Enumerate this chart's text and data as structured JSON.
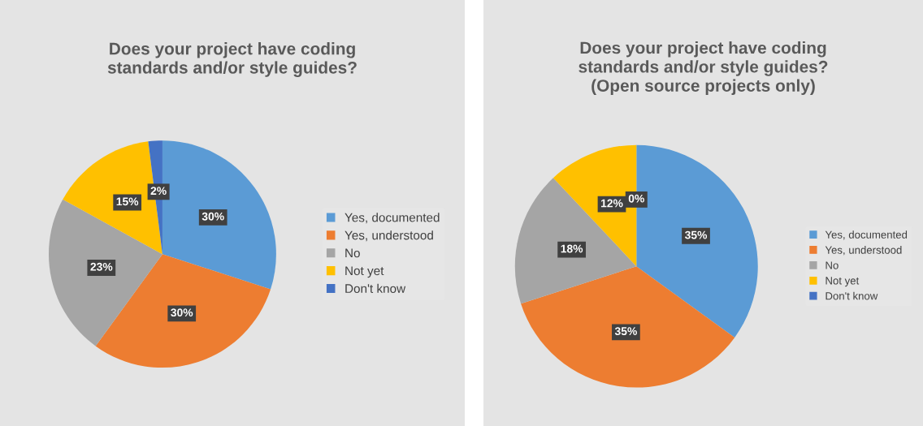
{
  "chart_data": [
    {
      "type": "pie",
      "title": "Does your project have coding\nstandards and/or style guides?",
      "categories": [
        "Yes, documented",
        "Yes, understood",
        "No",
        "Not yet",
        "Don't know"
      ],
      "values": [
        30,
        30,
        23,
        15,
        2
      ],
      "colors": [
        "#5b9bd5",
        "#ed7d31",
        "#a5a5a5",
        "#ffc000",
        "#4472c4"
      ],
      "value_labels": [
        "30%",
        "30%",
        "23%",
        "15%",
        "2%"
      ],
      "legend": "right"
    },
    {
      "type": "pie",
      "title": "Does your project have coding\nstandards and/or style guides?\n(Open source projects only)",
      "categories": [
        "Yes, documented",
        "Yes, understood",
        "No",
        "Not yet",
        "Don't know"
      ],
      "values": [
        35,
        35,
        18,
        12,
        0
      ],
      "colors": [
        "#5b9bd5",
        "#ed7d31",
        "#a5a5a5",
        "#ffc000",
        "#4472c4"
      ],
      "value_labels": [
        "35%",
        "35%",
        "18%",
        "12%",
        "0%"
      ],
      "legend": "right"
    }
  ]
}
